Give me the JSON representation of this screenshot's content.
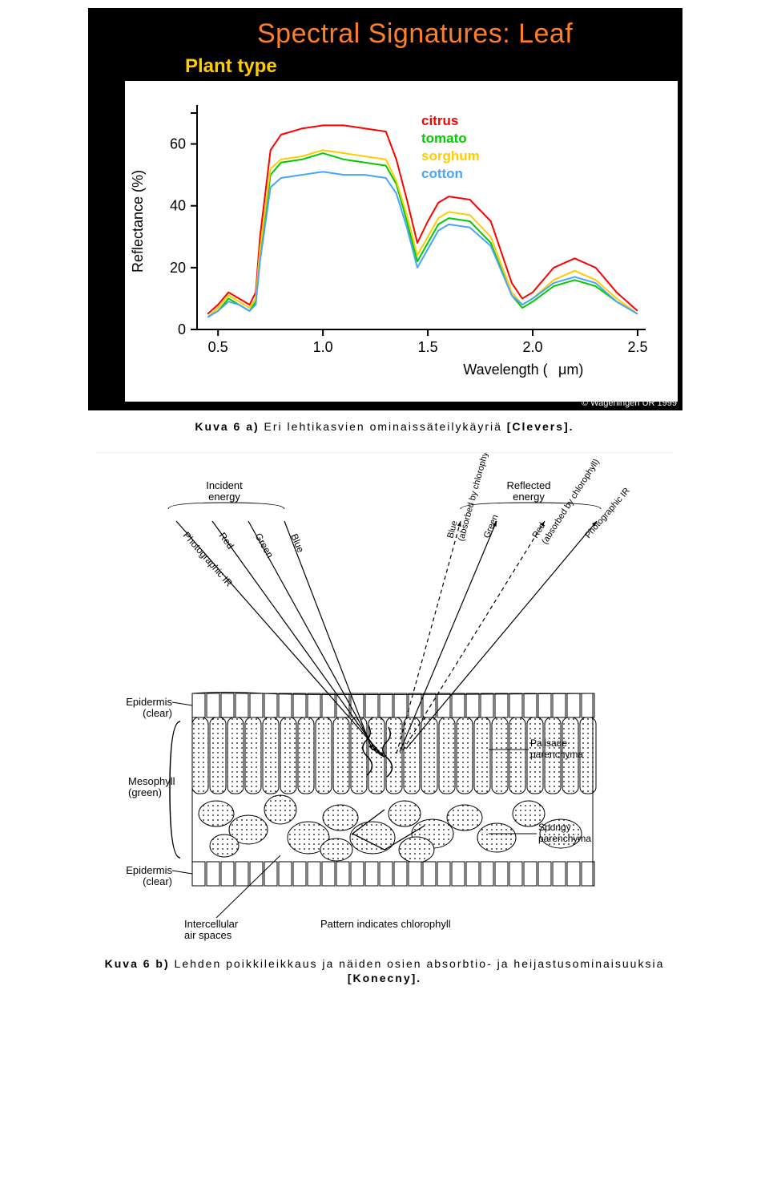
{
  "figure1": {
    "title": "Spectral Signatures: Leaf",
    "subtitle": "Plant type",
    "copyright": "© Wageningen UR 1999",
    "y_axis": {
      "label": "Reflectance (%)",
      "ticks": [
        0,
        20,
        40,
        60
      ],
      "fontsize": 16,
      "color": "#000000"
    },
    "x_axis": {
      "label": "Wavelength (µm)",
      "ticks": [
        0.5,
        1.0,
        1.5,
        2.0,
        2.5
      ],
      "fontsize": 16,
      "color": "#000000"
    },
    "ylim": [
      0,
      70
    ],
    "xlim": [
      0.4,
      2.5
    ],
    "legend": [
      {
        "label": "citrus",
        "color": "#ff0000"
      },
      {
        "label": "tomato",
        "color": "#00cc00"
      },
      {
        "label": "sorghum",
        "color": "#ffcc00"
      },
      {
        "label": "cotton",
        "color": "#4aa3ff"
      }
    ],
    "background_color": "#000000",
    "plot_background": "#ffffff",
    "title_color": "#ff7f27",
    "subtitle_color": "#ffcc00",
    "line_width": 2,
    "series": {
      "citrus": {
        "color": "#ff0000",
        "points": [
          [
            0.45,
            5
          ],
          [
            0.5,
            8
          ],
          [
            0.55,
            12
          ],
          [
            0.6,
            10
          ],
          [
            0.65,
            8
          ],
          [
            0.68,
            12
          ],
          [
            0.7,
            30
          ],
          [
            0.75,
            58
          ],
          [
            0.8,
            63
          ],
          [
            0.9,
            65
          ],
          [
            1.0,
            66
          ],
          [
            1.1,
            66
          ],
          [
            1.2,
            65
          ],
          [
            1.3,
            64
          ],
          [
            1.35,
            55
          ],
          [
            1.4,
            42
          ],
          [
            1.45,
            28
          ],
          [
            1.5,
            35
          ],
          [
            1.55,
            41
          ],
          [
            1.6,
            43
          ],
          [
            1.7,
            42
          ],
          [
            1.8,
            35
          ],
          [
            1.9,
            15
          ],
          [
            1.95,
            10
          ],
          [
            2.0,
            12
          ],
          [
            2.1,
            20
          ],
          [
            2.2,
            23
          ],
          [
            2.3,
            20
          ],
          [
            2.4,
            12
          ],
          [
            2.5,
            6
          ]
        ]
      },
      "tomato": {
        "color": "#00cc00",
        "points": [
          [
            0.45,
            4
          ],
          [
            0.5,
            6
          ],
          [
            0.55,
            10
          ],
          [
            0.6,
            8
          ],
          [
            0.65,
            6
          ],
          [
            0.68,
            9
          ],
          [
            0.7,
            24
          ],
          [
            0.75,
            50
          ],
          [
            0.8,
            54
          ],
          [
            0.9,
            55
          ],
          [
            1.0,
            57
          ],
          [
            1.1,
            55
          ],
          [
            1.2,
            54
          ],
          [
            1.3,
            53
          ],
          [
            1.35,
            47
          ],
          [
            1.4,
            35
          ],
          [
            1.45,
            22
          ],
          [
            1.5,
            28
          ],
          [
            1.55,
            34
          ],
          [
            1.6,
            36
          ],
          [
            1.7,
            35
          ],
          [
            1.8,
            28
          ],
          [
            1.9,
            11
          ],
          [
            1.95,
            7
          ],
          [
            2.0,
            9
          ],
          [
            2.1,
            14
          ],
          [
            2.2,
            16
          ],
          [
            2.3,
            14
          ],
          [
            2.4,
            9
          ],
          [
            2.5,
            5
          ]
        ]
      },
      "sorghum": {
        "color": "#ffcc00",
        "points": [
          [
            0.45,
            4
          ],
          [
            0.5,
            7
          ],
          [
            0.55,
            11
          ],
          [
            0.6,
            9
          ],
          [
            0.65,
            7
          ],
          [
            0.68,
            10
          ],
          [
            0.7,
            26
          ],
          [
            0.75,
            52
          ],
          [
            0.8,
            55
          ],
          [
            0.9,
            56
          ],
          [
            1.0,
            58
          ],
          [
            1.1,
            57
          ],
          [
            1.2,
            56
          ],
          [
            1.3,
            55
          ],
          [
            1.35,
            48
          ],
          [
            1.4,
            37
          ],
          [
            1.45,
            24
          ],
          [
            1.5,
            30
          ],
          [
            1.55,
            36
          ],
          [
            1.6,
            38
          ],
          [
            1.7,
            37
          ],
          [
            1.8,
            30
          ],
          [
            1.9,
            12
          ],
          [
            1.95,
            8
          ],
          [
            2.0,
            10
          ],
          [
            2.1,
            16
          ],
          [
            2.2,
            19
          ],
          [
            2.3,
            16
          ],
          [
            2.4,
            10
          ],
          [
            2.5,
            5
          ]
        ]
      },
      "cotton": {
        "color": "#4aa3ff",
        "points": [
          [
            0.45,
            4
          ],
          [
            0.5,
            6
          ],
          [
            0.55,
            9
          ],
          [
            0.6,
            8
          ],
          [
            0.65,
            6
          ],
          [
            0.68,
            8
          ],
          [
            0.7,
            22
          ],
          [
            0.75,
            46
          ],
          [
            0.8,
            49
          ],
          [
            0.9,
            50
          ],
          [
            1.0,
            51
          ],
          [
            1.1,
            50
          ],
          [
            1.2,
            50
          ],
          [
            1.3,
            49
          ],
          [
            1.35,
            44
          ],
          [
            1.4,
            33
          ],
          [
            1.45,
            20
          ],
          [
            1.5,
            26
          ],
          [
            1.55,
            32
          ],
          [
            1.6,
            34
          ],
          [
            1.7,
            33
          ],
          [
            1.8,
            27
          ],
          [
            1.9,
            11
          ],
          [
            1.95,
            8
          ],
          [
            2.0,
            10
          ],
          [
            2.1,
            15
          ],
          [
            2.2,
            17
          ],
          [
            2.3,
            15
          ],
          [
            2.4,
            9
          ],
          [
            2.5,
            5
          ]
        ]
      }
    }
  },
  "caption1": {
    "prefix": "Kuva 6 a)",
    "text": " Eri lehtikasvien ominaissäteilykäyriä ",
    "cite": "[Clevers]."
  },
  "figure2": {
    "labels": {
      "incident": "Incident\nenergy",
      "reflected": "Reflected\nenergy",
      "rays_in": [
        "Photographic IR",
        "Red",
        "Green",
        "Blue"
      ],
      "rays_out": [
        "Blue\n(absorbed by chlorophyll)",
        "Green",
        "Red\n(absorbed by chlorophyll)",
        "Photographic IR"
      ],
      "epidermis": "Epidermis\n(clear)",
      "mesophyll": "Mesophyll\n(green)",
      "palisade": "Palisade\nparenchyma",
      "spongy": "Spongy\nparenchyma",
      "intercellular": "Intercellular\nair spaces",
      "pattern": "Pattern indicates chlorophyll"
    },
    "colors": {
      "background": "#ffffff",
      "lines": "#000000",
      "cell_fill": "#f8f8f8",
      "text": "#000000"
    },
    "font_family": "Arial",
    "font_size": 12
  },
  "caption2": {
    "prefix": "Kuva 6 b)",
    "line1": " Lehden poikkileikkaus ja näiden osien absorbtio- ja heijastusominaisuuksia",
    "line2_cite": "[Konecny]."
  }
}
